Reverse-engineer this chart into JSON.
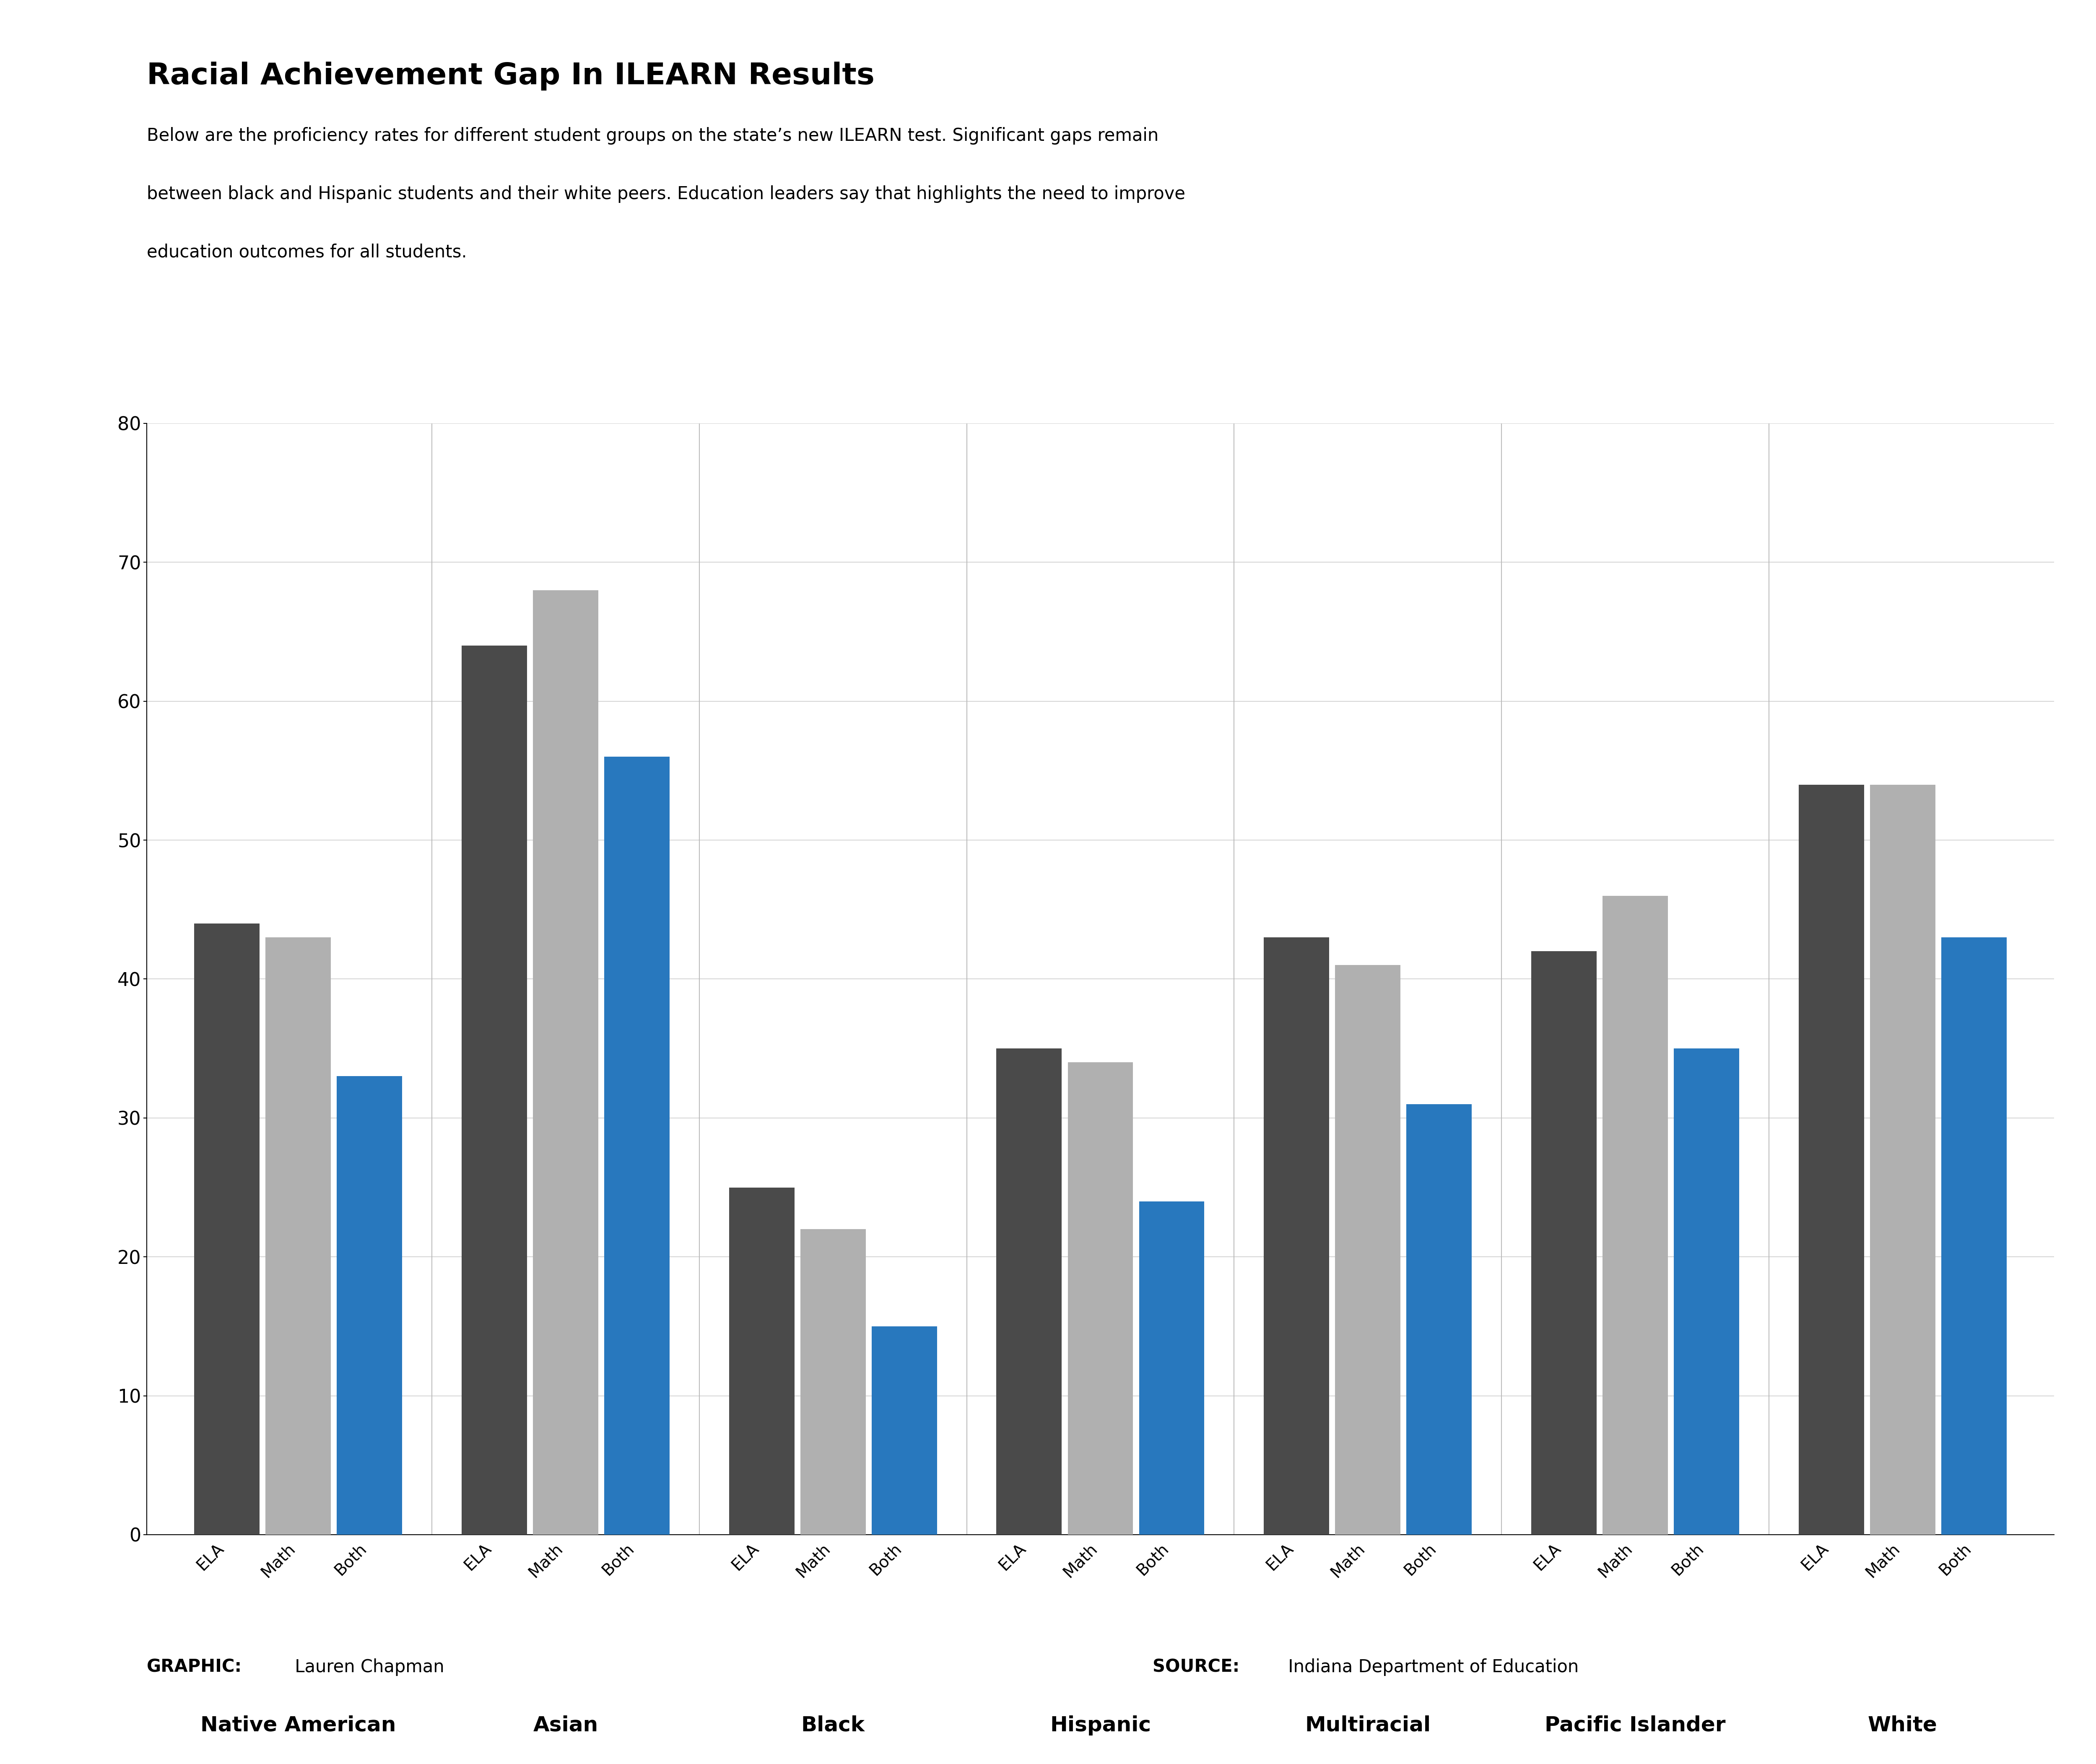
{
  "title": "Racial Achievement Gap In ILEARN Results",
  "subtitle_lines": [
    "Below are the proficiency rates for different student groups on the state’s new ILEARN test. Significant gaps remain",
    "between black and Hispanic students and their white peers. Education leaders say that highlights the need to improve",
    "education outcomes for all students."
  ],
  "groups": [
    "Native American",
    "Asian",
    "Black",
    "Hispanic",
    "Multiracial",
    "Pacific Islander",
    "White"
  ],
  "sub_labels": [
    "ELA",
    "Math",
    "Both"
  ],
  "values": [
    [
      44,
      43,
      33
    ],
    [
      64,
      68,
      56
    ],
    [
      25,
      22,
      15
    ],
    [
      35,
      34,
      24
    ],
    [
      43,
      41,
      31
    ],
    [
      42,
      46,
      35
    ],
    [
      54,
      54,
      43
    ]
  ],
  "bar_colors": [
    "#4a4a4a",
    "#b0b0b0",
    "#2878be"
  ],
  "ylim": [
    0,
    80
  ],
  "yticks": [
    0,
    10,
    20,
    30,
    40,
    50,
    60,
    70,
    80
  ],
  "background_color": "#ffffff",
  "title_fontsize": 52,
  "subtitle_fontsize": 30,
  "sublabel_fontsize": 28,
  "group_label_fontsize": 36,
  "ytick_fontsize": 32,
  "footer_graphic": "GRAPHIC:",
  "footer_graphic_name": " Lauren Chapman",
  "footer_source": "SOURCE:",
  "footer_source_name": " Indiana Department of Education",
  "footer_fontsize": 30
}
